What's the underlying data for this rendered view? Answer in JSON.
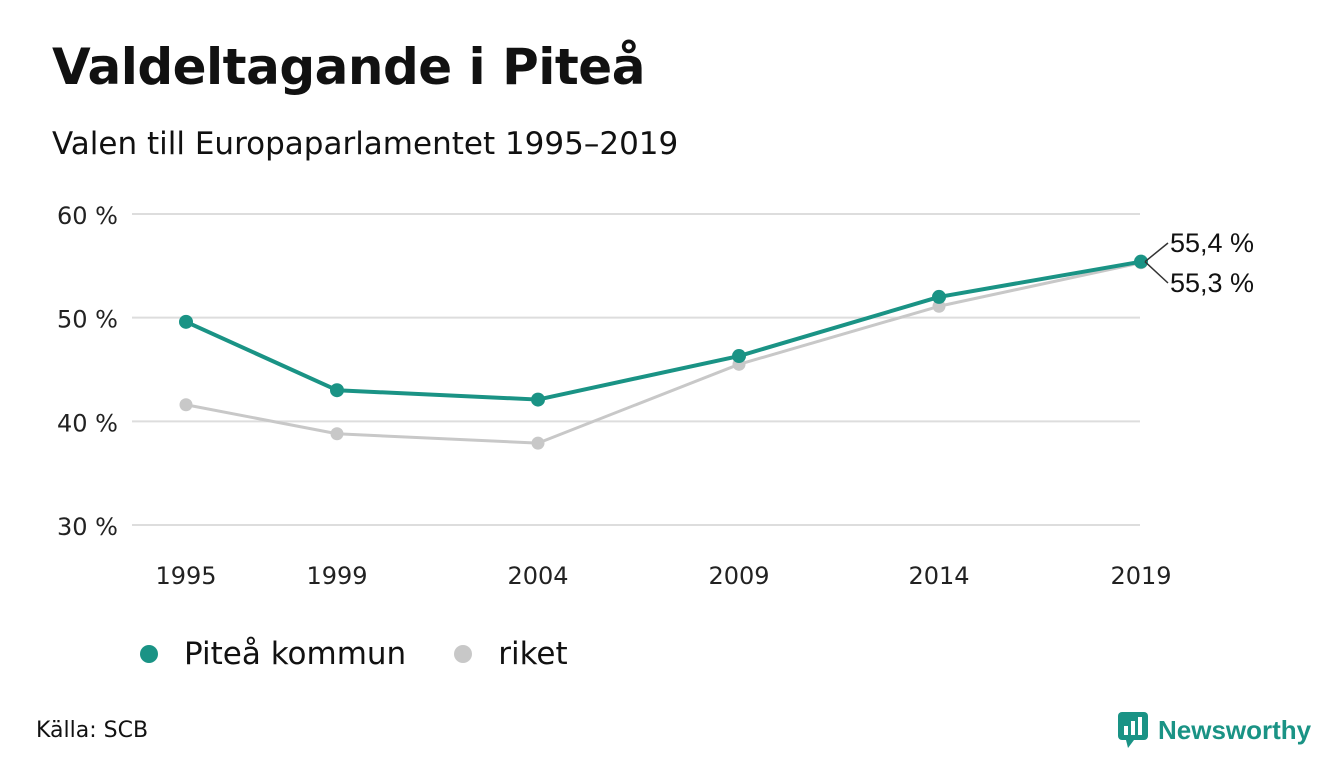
{
  "title": "Valdeltagande i Piteå",
  "subtitle": "Valen till Europaparlamentet 1995–2019",
  "source": "Källa: SCB",
  "brand": {
    "name": "Newsworthy",
    "icon": "newsworthy-logo-icon"
  },
  "colors": {
    "primary": "#1a9385",
    "secondary": "#c8c8c8",
    "grid": "#dddddd"
  },
  "chart_data": {
    "type": "line",
    "x": [
      "1995",
      "1999",
      "2004",
      "2009",
      "2014",
      "2019"
    ],
    "series": [
      {
        "name": "Piteå kommun",
        "values": [
          49.6,
          43.0,
          42.1,
          46.3,
          52.0,
          55.4
        ],
        "color": "#1a9385"
      },
      {
        "name": "riket",
        "values": [
          41.6,
          38.8,
          37.9,
          45.5,
          51.1,
          55.3
        ],
        "color": "#c8c8c8"
      }
    ],
    "ylim": [
      30,
      60
    ],
    "yticks": [
      30,
      40,
      50,
      60
    ],
    "ytick_labels": [
      "30 %",
      "40 %",
      "50 %",
      "60 %"
    ],
    "end_labels": [
      "55,4 %",
      "55,3 %"
    ],
    "grid": true,
    "legend_position": "bottom"
  }
}
